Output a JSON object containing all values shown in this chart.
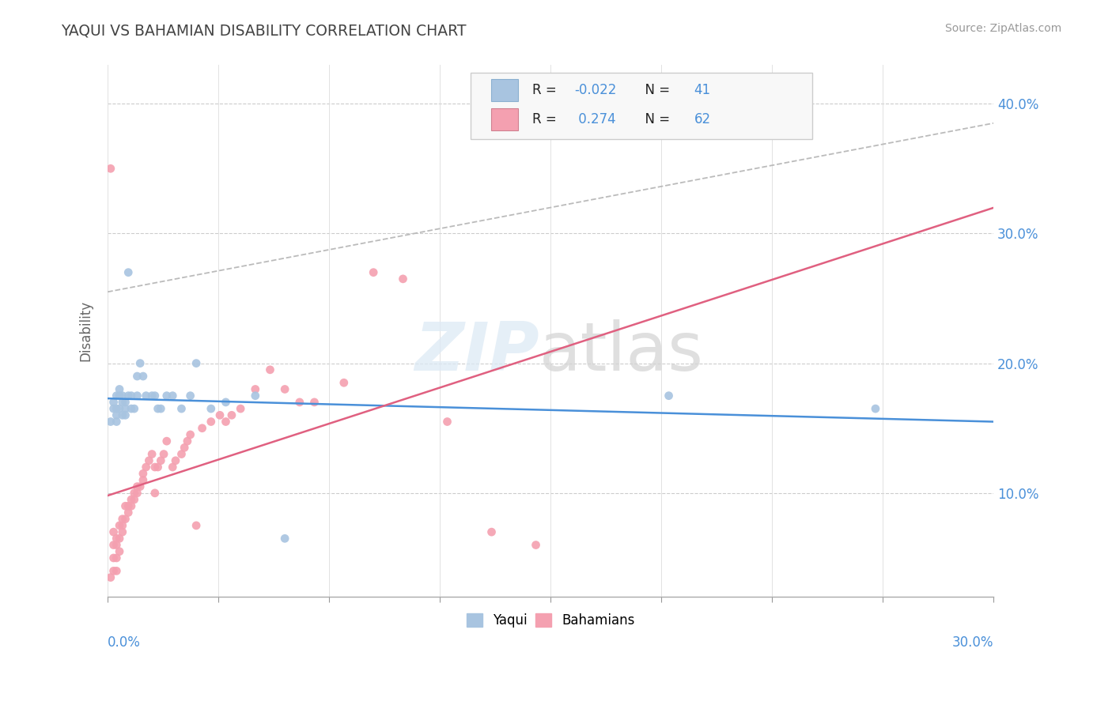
{
  "title": "YAQUI VS BAHAMIAN DISABILITY CORRELATION CHART",
  "source": "Source: ZipAtlas.com",
  "ylabel": "Disability",
  "yaqui_R": -0.022,
  "yaqui_N": 41,
  "bahamian_R": 0.274,
  "bahamian_N": 62,
  "yaqui_color": "#a8c4e0",
  "bahamian_color": "#f4a0b0",
  "yaqui_line_color": "#4a90d9",
  "bahamian_line_color": "#e06080",
  "trend_line_color": "#bbbbbb",
  "title_color": "#444444",
  "axis_label_color": "#4a90d9",
  "xlim": [
    0.0,
    0.3
  ],
  "ylim": [
    0.02,
    0.43
  ],
  "yaqui_x": [
    0.001,
    0.002,
    0.002,
    0.003,
    0.003,
    0.003,
    0.003,
    0.004,
    0.004,
    0.004,
    0.005,
    0.005,
    0.005,
    0.006,
    0.006,
    0.006,
    0.007,
    0.007,
    0.008,
    0.008,
    0.009,
    0.01,
    0.01,
    0.011,
    0.012,
    0.013,
    0.015,
    0.016,
    0.017,
    0.018,
    0.02,
    0.022,
    0.025,
    0.028,
    0.03,
    0.035,
    0.04,
    0.05,
    0.19,
    0.26,
    0.06
  ],
  "yaqui_y": [
    0.155,
    0.165,
    0.17,
    0.175,
    0.16,
    0.165,
    0.155,
    0.18,
    0.175,
    0.165,
    0.17,
    0.175,
    0.16,
    0.165,
    0.17,
    0.16,
    0.27,
    0.175,
    0.175,
    0.165,
    0.165,
    0.19,
    0.175,
    0.2,
    0.19,
    0.175,
    0.175,
    0.175,
    0.165,
    0.165,
    0.175,
    0.175,
    0.165,
    0.175,
    0.2,
    0.165,
    0.17,
    0.175,
    0.175,
    0.165,
    0.065
  ],
  "bahamian_x": [
    0.001,
    0.001,
    0.002,
    0.002,
    0.002,
    0.002,
    0.003,
    0.003,
    0.003,
    0.003,
    0.004,
    0.004,
    0.004,
    0.005,
    0.005,
    0.005,
    0.006,
    0.006,
    0.007,
    0.007,
    0.008,
    0.008,
    0.009,
    0.009,
    0.01,
    0.01,
    0.011,
    0.012,
    0.012,
    0.013,
    0.014,
    0.015,
    0.016,
    0.016,
    0.017,
    0.018,
    0.019,
    0.02,
    0.022,
    0.023,
    0.025,
    0.026,
    0.027,
    0.028,
    0.03,
    0.032,
    0.035,
    0.038,
    0.04,
    0.042,
    0.045,
    0.05,
    0.055,
    0.06,
    0.065,
    0.07,
    0.08,
    0.09,
    0.1,
    0.115,
    0.13,
    0.145
  ],
  "bahamian_y": [
    0.035,
    0.35,
    0.04,
    0.05,
    0.06,
    0.07,
    0.04,
    0.05,
    0.06,
    0.065,
    0.055,
    0.065,
    0.075,
    0.07,
    0.075,
    0.08,
    0.08,
    0.09,
    0.085,
    0.09,
    0.09,
    0.095,
    0.095,
    0.1,
    0.1,
    0.105,
    0.105,
    0.11,
    0.115,
    0.12,
    0.125,
    0.13,
    0.1,
    0.12,
    0.12,
    0.125,
    0.13,
    0.14,
    0.12,
    0.125,
    0.13,
    0.135,
    0.14,
    0.145,
    0.075,
    0.15,
    0.155,
    0.16,
    0.155,
    0.16,
    0.165,
    0.18,
    0.195,
    0.18,
    0.17,
    0.17,
    0.185,
    0.27,
    0.265,
    0.155,
    0.07,
    0.06
  ]
}
